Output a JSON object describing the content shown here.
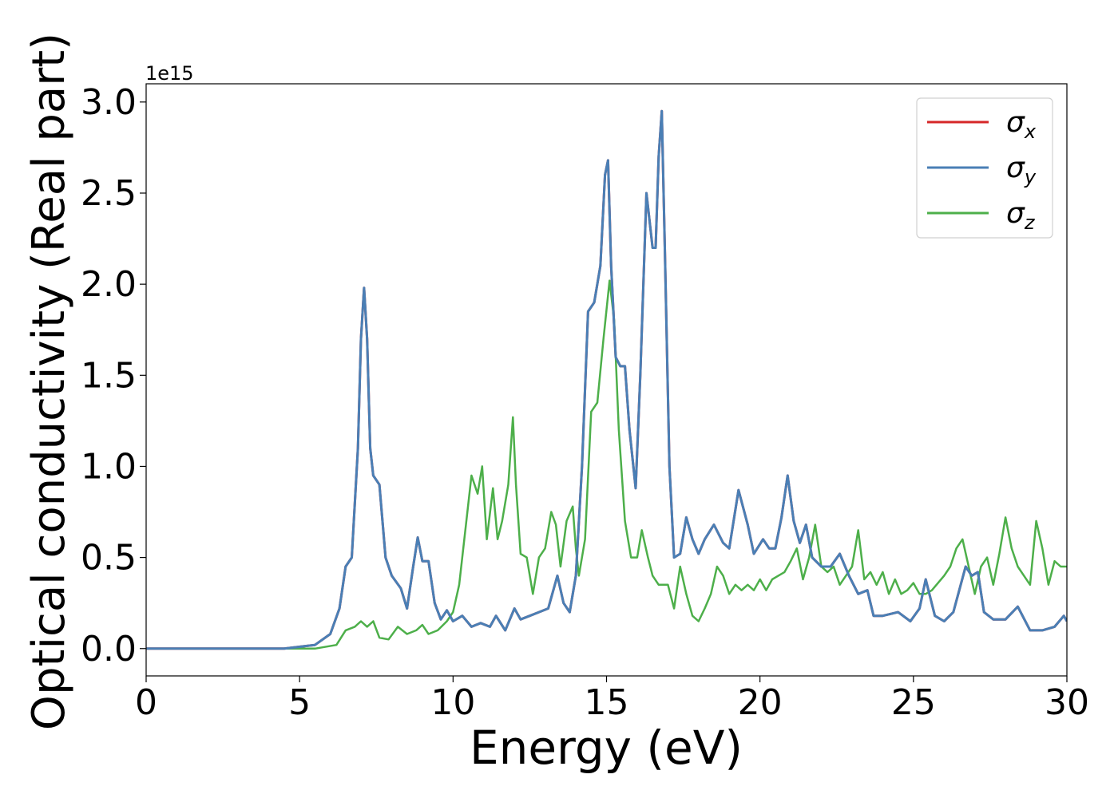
{
  "chart_data": {
    "type": "line",
    "title": "",
    "xlabel": "Energy (eV)",
    "ylabel": "Optical conductivity (Real part)",
    "offset_label": "1e15",
    "xlim": [
      0,
      30
    ],
    "ylim": [
      -0.15,
      3.1
    ],
    "x_ticks": [
      0,
      5,
      10,
      15,
      20,
      25,
      30
    ],
    "x_tick_labels": [
      "0",
      "5",
      "10",
      "15",
      "20",
      "25",
      "30"
    ],
    "y_ticks": [
      0.0,
      0.5,
      1.0,
      1.5,
      2.0,
      2.5,
      3.0
    ],
    "y_tick_labels": [
      "0.0",
      "0.5",
      "1.0",
      "1.5",
      "2.0",
      "2.5",
      "3.0"
    ],
    "grid": false,
    "legend_position": "top-right",
    "series": [
      {
        "name": "σx",
        "legend_base": "σ",
        "legend_sub": "x",
        "color": "#d62728",
        "x": [
          0,
          4.5,
          5.5,
          6.0,
          6.3,
          6.5,
          6.7,
          6.9,
          7.0,
          7.1,
          7.2,
          7.3,
          7.4,
          7.6,
          7.8,
          8.0,
          8.3,
          8.5,
          8.7,
          8.85,
          9.0,
          9.2,
          9.4,
          9.6,
          9.8,
          10.0,
          10.3,
          10.6,
          10.9,
          11.2,
          11.4,
          11.7,
          12.0,
          12.2,
          12.5,
          12.8,
          13.1,
          13.4,
          13.6,
          13.8,
          14.0,
          14.2,
          14.4,
          14.6,
          14.8,
          14.95,
          15.05,
          15.15,
          15.3,
          15.45,
          15.6,
          15.75,
          15.95,
          16.1,
          16.3,
          16.5,
          16.6,
          16.7,
          16.8,
          16.9,
          17.05,
          17.2,
          17.4,
          17.6,
          17.8,
          18.0,
          18.2,
          18.5,
          18.8,
          19.0,
          19.3,
          19.6,
          19.8,
          20.1,
          20.3,
          20.5,
          20.7,
          20.9,
          21.1,
          21.3,
          21.5,
          21.7,
          22.0,
          22.3,
          22.6,
          22.9,
          23.2,
          23.5,
          23.7,
          24.0,
          24.5,
          24.9,
          25.2,
          25.4,
          25.7,
          26.0,
          26.3,
          26.7,
          26.9,
          27.1,
          27.3,
          27.6,
          28.0,
          28.4,
          28.8,
          29.2,
          29.6,
          29.9,
          30.0
        ],
        "values": [
          0.0,
          0.0,
          0.02,
          0.08,
          0.22,
          0.45,
          0.5,
          1.1,
          1.7,
          1.98,
          1.7,
          1.1,
          0.95,
          0.9,
          0.5,
          0.4,
          0.33,
          0.22,
          0.45,
          0.61,
          0.48,
          0.48,
          0.25,
          0.16,
          0.21,
          0.15,
          0.18,
          0.12,
          0.14,
          0.12,
          0.18,
          0.1,
          0.22,
          0.16,
          0.18,
          0.2,
          0.22,
          0.4,
          0.25,
          0.2,
          0.4,
          1.0,
          1.85,
          1.9,
          2.1,
          2.6,
          2.68,
          2.1,
          1.6,
          1.55,
          1.55,
          1.2,
          0.88,
          1.5,
          2.5,
          2.2,
          2.2,
          2.7,
          2.95,
          2.2,
          1.0,
          0.5,
          0.52,
          0.72,
          0.6,
          0.52,
          0.6,
          0.68,
          0.58,
          0.55,
          0.87,
          0.68,
          0.52,
          0.6,
          0.55,
          0.55,
          0.72,
          0.95,
          0.7,
          0.58,
          0.68,
          0.5,
          0.45,
          0.45,
          0.52,
          0.4,
          0.3,
          0.32,
          0.18,
          0.18,
          0.2,
          0.15,
          0.22,
          0.38,
          0.18,
          0.15,
          0.2,
          0.45,
          0.4,
          0.42,
          0.2,
          0.16,
          0.16,
          0.23,
          0.1,
          0.1,
          0.12,
          0.18,
          0.15
        ]
      },
      {
        "name": "σy",
        "legend_base": "σ",
        "legend_sub": "y",
        "color": "#4a7fb5",
        "x": [
          0,
          4.5,
          5.5,
          6.0,
          6.3,
          6.5,
          6.7,
          6.9,
          7.0,
          7.1,
          7.2,
          7.3,
          7.4,
          7.6,
          7.8,
          8.0,
          8.3,
          8.5,
          8.7,
          8.85,
          9.0,
          9.2,
          9.4,
          9.6,
          9.8,
          10.0,
          10.3,
          10.6,
          10.9,
          11.2,
          11.4,
          11.7,
          12.0,
          12.2,
          12.5,
          12.8,
          13.1,
          13.4,
          13.6,
          13.8,
          14.0,
          14.2,
          14.4,
          14.6,
          14.8,
          14.95,
          15.05,
          15.15,
          15.3,
          15.45,
          15.6,
          15.75,
          15.95,
          16.1,
          16.3,
          16.5,
          16.6,
          16.7,
          16.8,
          16.9,
          17.05,
          17.2,
          17.4,
          17.6,
          17.8,
          18.0,
          18.2,
          18.5,
          18.8,
          19.0,
          19.3,
          19.6,
          19.8,
          20.1,
          20.3,
          20.5,
          20.7,
          20.9,
          21.1,
          21.3,
          21.5,
          21.7,
          22.0,
          22.3,
          22.6,
          22.9,
          23.2,
          23.5,
          23.7,
          24.0,
          24.5,
          24.9,
          25.2,
          25.4,
          25.7,
          26.0,
          26.3,
          26.7,
          26.9,
          27.1,
          27.3,
          27.6,
          28.0,
          28.4,
          28.8,
          29.2,
          29.6,
          29.9,
          30.0
        ],
        "values": [
          0.0,
          0.0,
          0.02,
          0.08,
          0.22,
          0.45,
          0.5,
          1.1,
          1.7,
          1.98,
          1.7,
          1.1,
          0.95,
          0.9,
          0.5,
          0.4,
          0.33,
          0.22,
          0.45,
          0.61,
          0.48,
          0.48,
          0.25,
          0.16,
          0.21,
          0.15,
          0.18,
          0.12,
          0.14,
          0.12,
          0.18,
          0.1,
          0.22,
          0.16,
          0.18,
          0.2,
          0.22,
          0.4,
          0.25,
          0.2,
          0.4,
          1.0,
          1.85,
          1.9,
          2.1,
          2.6,
          2.68,
          2.1,
          1.6,
          1.55,
          1.55,
          1.2,
          0.88,
          1.5,
          2.5,
          2.2,
          2.2,
          2.7,
          2.95,
          2.2,
          1.0,
          0.5,
          0.52,
          0.72,
          0.6,
          0.52,
          0.6,
          0.68,
          0.58,
          0.55,
          0.87,
          0.68,
          0.52,
          0.6,
          0.55,
          0.55,
          0.72,
          0.95,
          0.7,
          0.58,
          0.68,
          0.5,
          0.45,
          0.45,
          0.52,
          0.4,
          0.3,
          0.32,
          0.18,
          0.18,
          0.2,
          0.15,
          0.22,
          0.38,
          0.18,
          0.15,
          0.2,
          0.45,
          0.4,
          0.42,
          0.2,
          0.16,
          0.16,
          0.23,
          0.1,
          0.1,
          0.12,
          0.18,
          0.15
        ]
      },
      {
        "name": "σz",
        "legend_base": "σ",
        "legend_sub": "z",
        "color": "#4daf4a",
        "x": [
          0,
          5.5,
          6.2,
          6.5,
          6.8,
          7.0,
          7.2,
          7.4,
          7.6,
          7.9,
          8.2,
          8.5,
          8.8,
          9.0,
          9.2,
          9.5,
          9.8,
          10.0,
          10.2,
          10.4,
          10.6,
          10.8,
          10.95,
          11.1,
          11.3,
          11.45,
          11.6,
          11.8,
          11.95,
          12.05,
          12.2,
          12.4,
          12.6,
          12.8,
          13.0,
          13.2,
          13.35,
          13.5,
          13.7,
          13.9,
          14.0,
          14.1,
          14.3,
          14.5,
          14.7,
          14.9,
          15.1,
          15.25,
          15.4,
          15.6,
          15.8,
          16.0,
          16.15,
          16.35,
          16.5,
          16.7,
          17.0,
          17.2,
          17.4,
          17.6,
          17.8,
          18.0,
          18.2,
          18.4,
          18.6,
          18.8,
          19.0,
          19.2,
          19.4,
          19.6,
          19.8,
          20.0,
          20.2,
          20.4,
          20.6,
          20.8,
          21.0,
          21.2,
          21.4,
          21.6,
          21.8,
          22.0,
          22.2,
          22.4,
          22.6,
          22.8,
          23.0,
          23.2,
          23.4,
          23.6,
          23.8,
          24.0,
          24.2,
          24.4,
          24.6,
          24.8,
          25.0,
          25.2,
          25.4,
          25.6,
          25.8,
          26.0,
          26.2,
          26.4,
          26.6,
          26.8,
          27.0,
          27.2,
          27.4,
          27.6,
          27.8,
          28.0,
          28.2,
          28.4,
          28.6,
          28.8,
          29.0,
          29.2,
          29.4,
          29.6,
          29.8,
          30.0
        ],
        "values": [
          0.0,
          0.0,
          0.02,
          0.1,
          0.12,
          0.15,
          0.12,
          0.15,
          0.06,
          0.05,
          0.12,
          0.08,
          0.1,
          0.13,
          0.08,
          0.1,
          0.15,
          0.2,
          0.35,
          0.65,
          0.95,
          0.85,
          1.0,
          0.6,
          0.88,
          0.6,
          0.7,
          0.9,
          1.27,
          0.9,
          0.52,
          0.5,
          0.3,
          0.5,
          0.55,
          0.75,
          0.68,
          0.45,
          0.7,
          0.78,
          0.55,
          0.4,
          0.6,
          1.3,
          1.35,
          1.7,
          2.02,
          1.8,
          1.2,
          0.7,
          0.5,
          0.5,
          0.65,
          0.5,
          0.4,
          0.35,
          0.35,
          0.22,
          0.45,
          0.3,
          0.18,
          0.15,
          0.22,
          0.3,
          0.45,
          0.4,
          0.3,
          0.35,
          0.32,
          0.35,
          0.32,
          0.38,
          0.32,
          0.38,
          0.4,
          0.42,
          0.48,
          0.55,
          0.38,
          0.5,
          0.68,
          0.45,
          0.42,
          0.45,
          0.35,
          0.4,
          0.45,
          0.65,
          0.38,
          0.42,
          0.35,
          0.42,
          0.3,
          0.38,
          0.3,
          0.32,
          0.36,
          0.3,
          0.3,
          0.32,
          0.36,
          0.4,
          0.45,
          0.55,
          0.6,
          0.45,
          0.3,
          0.45,
          0.5,
          0.35,
          0.52,
          0.72,
          0.55,
          0.45,
          0.4,
          0.35,
          0.7,
          0.55,
          0.35,
          0.48,
          0.45,
          0.45
        ]
      }
    ]
  }
}
